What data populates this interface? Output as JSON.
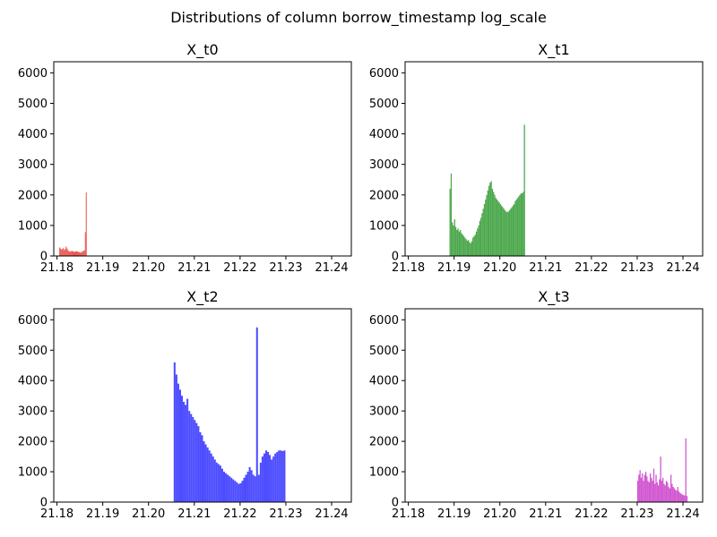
{
  "title": "Distributions of column borrow_timestamp log_scale",
  "chart_data": [
    {
      "type": "bar",
      "title": "X_t0",
      "color": "#e8413a",
      "xlim": [
        21.1793,
        21.2443
      ],
      "ylim": [
        0,
        6363
      ],
      "xticks": [
        "21.18",
        "21.19",
        "21.20",
        "21.21",
        "21.22",
        "21.23",
        "21.24"
      ],
      "yticks": [
        "0",
        "1000",
        "2000",
        "3000",
        "4000",
        "5000",
        "6000"
      ],
      "bins": {
        "start": 21.1805,
        "width": 0.0002,
        "values": [
          280,
          240,
          210,
          230,
          260,
          200,
          220,
          310,
          250,
          190,
          160,
          150,
          140,
          170,
          160,
          150,
          130,
          140,
          160,
          150,
          140,
          130,
          120,
          110,
          130,
          150,
          170,
          180,
          780,
          2080
        ]
      }
    },
    {
      "type": "bar",
      "title": "X_t1",
      "color": "#3a9e3a",
      "xlim": [
        21.1793,
        21.2443
      ],
      "ylim": [
        0,
        6363
      ],
      "xticks": [
        "21.18",
        "21.19",
        "21.20",
        "21.21",
        "21.22",
        "21.23",
        "21.24"
      ],
      "yticks": [
        "0",
        "1000",
        "2000",
        "3000",
        "4000",
        "5000",
        "6000"
      ],
      "bins": {
        "start": 21.189,
        "width": 0.00025,
        "values": [
          2200,
          2700,
          1100,
          1000,
          1200,
          950,
          850,
          900,
          800,
          850,
          750,
          700,
          650,
          600,
          550,
          500,
          520,
          450,
          420,
          480,
          600,
          650,
          700,
          800,
          900,
          1000,
          1150,
          1250,
          1400,
          1550,
          1700,
          1850,
          2000,
          2150,
          2300,
          2400,
          2450,
          2200,
          2100,
          2000,
          1900,
          1850,
          1800,
          1750,
          1700,
          1650,
          1600,
          1550,
          1500,
          1450,
          1450,
          1450,
          1500,
          1550,
          1600,
          1650,
          1700,
          1800,
          1850,
          1900,
          1950,
          2000,
          2050,
          2050,
          2100,
          4300
        ]
      }
    },
    {
      "type": "bar",
      "title": "X_t2",
      "color": "#3a3aff",
      "xlim": [
        21.1793,
        21.2443
      ],
      "ylim": [
        0,
        6363
      ],
      "xticks": [
        "21.18",
        "21.19",
        "21.20",
        "21.21",
        "21.22",
        "21.23",
        "21.24"
      ],
      "yticks": [
        "0",
        "1000",
        "2000",
        "3000",
        "4000",
        "5000",
        "6000"
      ],
      "bins": {
        "start": 21.2055,
        "width": 0.0004,
        "values": [
          4600,
          4200,
          3900,
          3700,
          3500,
          3300,
          3200,
          3400,
          3000,
          2900,
          2800,
          2700,
          2600,
          2500,
          2300,
          2200,
          2000,
          1900,
          1800,
          1700,
          1600,
          1500,
          1400,
          1300,
          1250,
          1200,
          1100,
          1000,
          950,
          900,
          850,
          800,
          750,
          700,
          650,
          600,
          620,
          700,
          800,
          900,
          1000,
          1150,
          1050,
          900,
          850,
          5750,
          900,
          1300,
          1500,
          1600,
          1700,
          1650,
          1550,
          1400,
          1500,
          1600,
          1650,
          1700,
          1700,
          1680,
          1700
        ]
      }
    },
    {
      "type": "bar",
      "title": "X_t3",
      "color": "#cc44cc",
      "xlim": [
        21.1793,
        21.2443
      ],
      "ylim": [
        0,
        6363
      ],
      "xticks": [
        "21.18",
        "21.19",
        "21.20",
        "21.21",
        "21.22",
        "21.23",
        "21.24"
      ],
      "yticks": [
        "0",
        "1000",
        "2000",
        "3000",
        "4000",
        "5000",
        "6000"
      ],
      "bins": {
        "start": 21.23,
        "width": 0.00025,
        "values": [
          700,
          900,
          1050,
          800,
          950,
          700,
          900,
          1000,
          850,
          700,
          650,
          950,
          800,
          700,
          1100,
          600,
          900,
          650,
          550,
          750,
          1500,
          700,
          800,
          600,
          550,
          700,
          650,
          500,
          450,
          900,
          600,
          500,
          450,
          400,
          380,
          500,
          350,
          300,
          280,
          250,
          230,
          220,
          2100,
          200
        ]
      }
    }
  ]
}
